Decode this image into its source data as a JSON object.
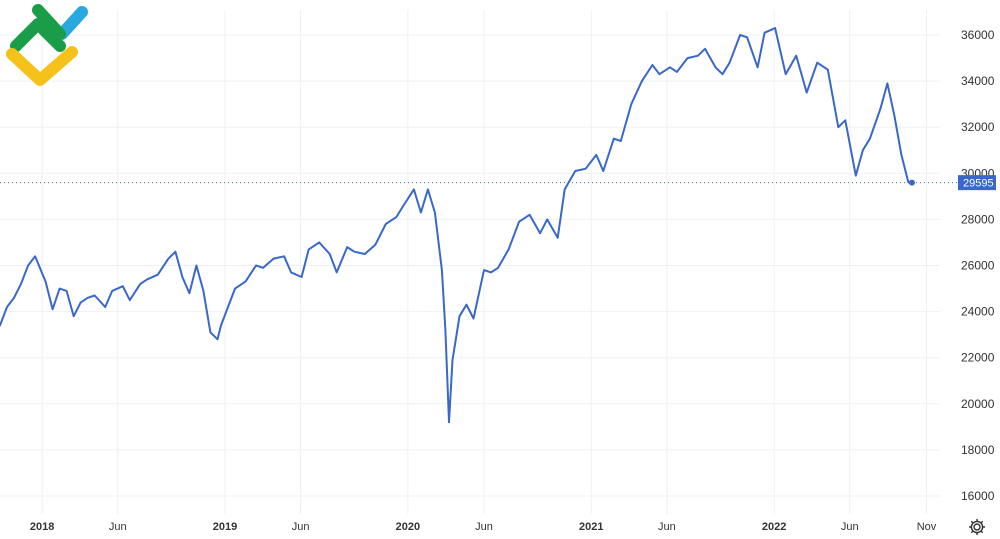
{
  "chart_data": {
    "type": "line",
    "title": "",
    "xlabel": "",
    "ylabel": "",
    "ylim": [
      15000,
      37000
    ],
    "yticks": [
      16000,
      18000,
      20000,
      22000,
      24000,
      26000,
      28000,
      30000,
      32000,
      34000,
      36000
    ],
    "xlim": [
      "2017-10-09",
      "2022-11-28"
    ],
    "xticks": [
      {
        "label": "2018",
        "date": "2018-01-01",
        "bold": true
      },
      {
        "label": "Jun",
        "date": "2018-06-01",
        "bold": false
      },
      {
        "label": "2019",
        "date": "2019-01-01",
        "bold": true
      },
      {
        "label": "Jun",
        "date": "2019-06-01",
        "bold": false
      },
      {
        "label": "2020",
        "date": "2020-01-01",
        "bold": true
      },
      {
        "label": "Jun",
        "date": "2020-06-01",
        "bold": false
      },
      {
        "label": "2021",
        "date": "2021-01-01",
        "bold": true
      },
      {
        "label": "Jun",
        "date": "2021-06-01",
        "bold": false
      },
      {
        "label": "2022",
        "date": "2022-01-01",
        "bold": true
      },
      {
        "label": "Jun",
        "date": "2022-06-01",
        "bold": false
      },
      {
        "label": "Nov",
        "date": "2022-11-01",
        "bold": false
      }
    ],
    "grid": true,
    "line_color": "#3a68c9",
    "last_value": 29595,
    "last_value_label": "29595",
    "series": [
      {
        "x": [
          "2017-10-09",
          "2017-10-23",
          "2017-11-06",
          "2017-11-20",
          "2017-12-04",
          "2017-12-18",
          "2018-01-08",
          "2018-01-22",
          "2018-02-05",
          "2018-02-19",
          "2018-03-05",
          "2018-03-19",
          "2018-04-02",
          "2018-04-16",
          "2018-05-07",
          "2018-05-21",
          "2018-06-11",
          "2018-06-25",
          "2018-07-16",
          "2018-07-30",
          "2018-08-20",
          "2018-09-10",
          "2018-09-24",
          "2018-10-08",
          "2018-10-22",
          "2018-11-05",
          "2018-11-19",
          "2018-12-03",
          "2018-12-17",
          "2018-12-24",
          "2019-01-07",
          "2019-01-21",
          "2019-02-11",
          "2019-03-04",
          "2019-03-18",
          "2019-04-08",
          "2019-04-29",
          "2019-05-13",
          "2019-06-03",
          "2019-06-17",
          "2019-07-08",
          "2019-07-29",
          "2019-08-12",
          "2019-09-02",
          "2019-09-16",
          "2019-10-07",
          "2019-10-28",
          "2019-11-18",
          "2019-12-09",
          "2019-12-23",
          "2020-01-13",
          "2020-01-27",
          "2020-02-10",
          "2020-02-24",
          "2020-03-09",
          "2020-03-16",
          "2020-03-23",
          "2020-03-30",
          "2020-04-13",
          "2020-04-27",
          "2020-05-11",
          "2020-06-01",
          "2020-06-15",
          "2020-06-29",
          "2020-07-20",
          "2020-08-10",
          "2020-08-31",
          "2020-09-21",
          "2020-10-05",
          "2020-10-26",
          "2020-11-09",
          "2020-11-30",
          "2020-12-21",
          "2021-01-11",
          "2021-01-25",
          "2021-02-15",
          "2021-03-01",
          "2021-03-22",
          "2021-04-12",
          "2021-05-03",
          "2021-05-17",
          "2021-06-07",
          "2021-06-21",
          "2021-07-12",
          "2021-08-02",
          "2021-08-16",
          "2021-09-06",
          "2021-09-20",
          "2021-10-04",
          "2021-10-25",
          "2021-11-08",
          "2021-11-29",
          "2021-12-13",
          "2022-01-03",
          "2022-01-24",
          "2022-02-14",
          "2022-03-07",
          "2022-03-28",
          "2022-04-18",
          "2022-05-09",
          "2022-05-23",
          "2022-06-13",
          "2022-06-27",
          "2022-07-11",
          "2022-08-01",
          "2022-08-15",
          "2022-08-29",
          "2022-09-12",
          "2022-09-26",
          "2022-10-03"
        ],
        "values": [
          23400,
          24200,
          24600,
          25200,
          26000,
          26400,
          25300,
          24100,
          25000,
          24900,
          23800,
          24400,
          24600,
          24700,
          24200,
          24900,
          25100,
          24500,
          25200,
          25400,
          25600,
          26300,
          26600,
          25500,
          24800,
          26000,
          24900,
          23100,
          22800,
          23400,
          24200,
          25000,
          25300,
          26000,
          25900,
          26300,
          26400,
          25700,
          25500,
          26700,
          27000,
          26500,
          25700,
          26800,
          26600,
          26500,
          26900,
          27800,
          28100,
          28600,
          29300,
          28300,
          29300,
          28300,
          25800,
          23200,
          19200,
          21900,
          23800,
          24300,
          23700,
          25800,
          25700,
          25900,
          26700,
          27900,
          28200,
          27400,
          28000,
          27200,
          29300,
          30100,
          30200,
          30800,
          30100,
          31500,
          31400,
          33000,
          34000,
          34700,
          34300,
          34600,
          34400,
          35000,
          35100,
          35400,
          34600,
          34300,
          34800,
          36000,
          35900,
          34600,
          36100,
          36300,
          34300,
          35100,
          33500,
          34800,
          34500,
          32000,
          32300,
          29900,
          31000,
          31500,
          32800,
          33900,
          32500,
          30800,
          29600,
          29595
        ]
      }
    ],
    "logo": {
      "colors": [
        "#1a9d49",
        "#f5c21b",
        "#2aa8e0"
      ],
      "icon": "brand-logo-icon"
    },
    "settings_icon": "gear-icon"
  }
}
